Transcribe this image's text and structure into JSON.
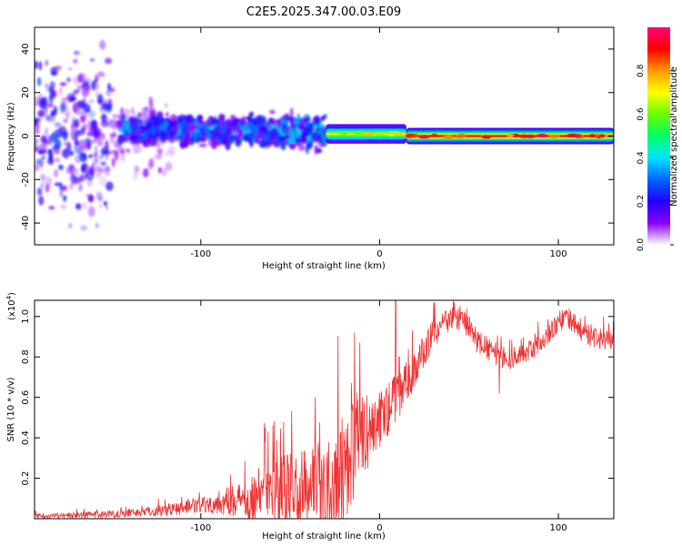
{
  "title": "C2E5.2025.347.00.03.E09",
  "colorbar": {
    "label": "Normalized spectral amplitude",
    "ticks": [
      {
        "value": 0.0,
        "label": "0.0"
      },
      {
        "value": 0.2,
        "label": "0.2"
      },
      {
        "value": 0.4,
        "label": "0.4"
      },
      {
        "value": 0.6,
        "label": "0.6"
      },
      {
        "value": 0.8,
        "label": "0.8"
      }
    ],
    "range": [
      0,
      1
    ],
    "colors": [
      "#ffffff",
      "#8a00ff",
      "#2200ff",
      "#0066ff",
      "#00e5ff",
      "#00ff66",
      "#66ff00",
      "#ffff00",
      "#ff9900",
      "#ff0000",
      "#ff0077"
    ]
  },
  "chart_data": [
    {
      "type": "heatmap",
      "title": "",
      "xlabel": "Height of straight line (km)",
      "ylabel": "Frequency (Hz)",
      "xlim": [
        -193,
        131
      ],
      "ylim": [
        -50,
        50
      ],
      "xticks": [
        {
          "value": -100,
          "label": "-100"
        },
        {
          "value": 0,
          "label": "0"
        },
        {
          "value": 100,
          "label": "100"
        }
      ],
      "yticks": [
        {
          "value": -40,
          "label": "-40"
        },
        {
          "value": -20,
          "label": "-20"
        },
        {
          "value": 0,
          "label": "0"
        },
        {
          "value": 20,
          "label": "20"
        },
        {
          "value": 40,
          "label": "40"
        }
      ],
      "segments": [
        {
          "x0": -193,
          "x1": -150,
          "freq_center": 0,
          "freq_halfwidth": 48,
          "amplitude": 0.15,
          "note": "scattered noise"
        },
        {
          "x0": -150,
          "x1": -115,
          "freq_center": 0,
          "freq_halfwidth": 25,
          "amplitude": 0.06,
          "note": "sparse noise"
        },
        {
          "x0": -145,
          "x1": -60,
          "freq_center": 3,
          "freq_halfwidth": 9,
          "amplitude": 0.25
        },
        {
          "x0": -60,
          "x1": -30,
          "freq_center": 2,
          "freq_halfwidth": 10,
          "amplitude": 0.3
        },
        {
          "x0": -30,
          "x1": 15,
          "freq_center": 1,
          "freq_halfwidth": 3,
          "amplitude": 0.7
        },
        {
          "x0": 15,
          "x1": 131,
          "freq_center": 0,
          "freq_halfwidth": 2.5,
          "amplitude": 0.9
        }
      ]
    },
    {
      "type": "line",
      "title": "",
      "xlabel": "Height of straight line (km)",
      "ylabel": "SNR (10 * v/v)",
      "y_multiplier": "(x10",
      "y_multiplier_exp": "4",
      "y_multiplier_close": ")",
      "xlim": [
        -193,
        131
      ],
      "ylim": [
        0,
        1.08
      ],
      "xticks": [
        {
          "value": -100,
          "label": "-100"
        },
        {
          "value": 0,
          "label": "0"
        },
        {
          "value": 100,
          "label": "100"
        }
      ],
      "yticks": [
        {
          "value": 0.2,
          "label": "0.2"
        },
        {
          "value": 0.4,
          "label": "0.4"
        },
        {
          "value": 0.6,
          "label": "0.6"
        },
        {
          "value": 0.8,
          "label": "0.8"
        },
        {
          "value": 1.0,
          "label": "1.0"
        }
      ],
      "color": "#ee3333",
      "envelope": {
        "x": [
          -193,
          -160,
          -140,
          -120,
          -100,
          -80,
          -70,
          -60,
          -50,
          -40,
          -30,
          -25,
          -20,
          -15,
          -10,
          -5,
          0,
          5,
          10,
          15,
          20,
          25,
          30,
          35,
          40,
          45,
          50,
          55,
          60,
          65,
          70,
          75,
          80,
          85,
          90,
          95,
          100,
          105,
          110,
          115,
          120,
          125,
          131
        ],
        "y": [
          0.015,
          0.02,
          0.03,
          0.045,
          0.07,
          0.1,
          0.12,
          0.14,
          0.15,
          0.17,
          0.2,
          0.24,
          0.3,
          0.36,
          0.42,
          0.46,
          0.5,
          0.56,
          0.62,
          0.68,
          0.75,
          0.84,
          0.92,
          0.96,
          0.99,
          1.0,
          0.95,
          0.88,
          0.85,
          0.82,
          0.8,
          0.8,
          0.82,
          0.84,
          0.88,
          0.93,
          0.98,
          1.0,
          0.96,
          0.92,
          0.9,
          0.89,
          0.88
        ]
      },
      "noise": {
        "x": [
          -193,
          -140,
          -100,
          -80,
          -60,
          -40,
          -30,
          -20,
          -10,
          0,
          10,
          20,
          40,
          131
        ],
        "amp": [
          0.012,
          0.02,
          0.04,
          0.08,
          0.18,
          0.2,
          0.28,
          0.3,
          0.2,
          0.15,
          0.12,
          0.09,
          0.06,
          0.05
        ]
      },
      "spikes": [
        {
          "x": -59,
          "y": 0.48
        },
        {
          "x": -36,
          "y": 0.6
        },
        {
          "x": -14,
          "y": 0.92
        },
        {
          "x": -11,
          "y": 0.87
        },
        {
          "x": 9,
          "y": 1.08
        },
        {
          "x": 11,
          "y": 0.8
        },
        {
          "x": 45,
          "y": 1.05
        },
        {
          "x": 67,
          "y": 0.62
        }
      ]
    }
  ]
}
